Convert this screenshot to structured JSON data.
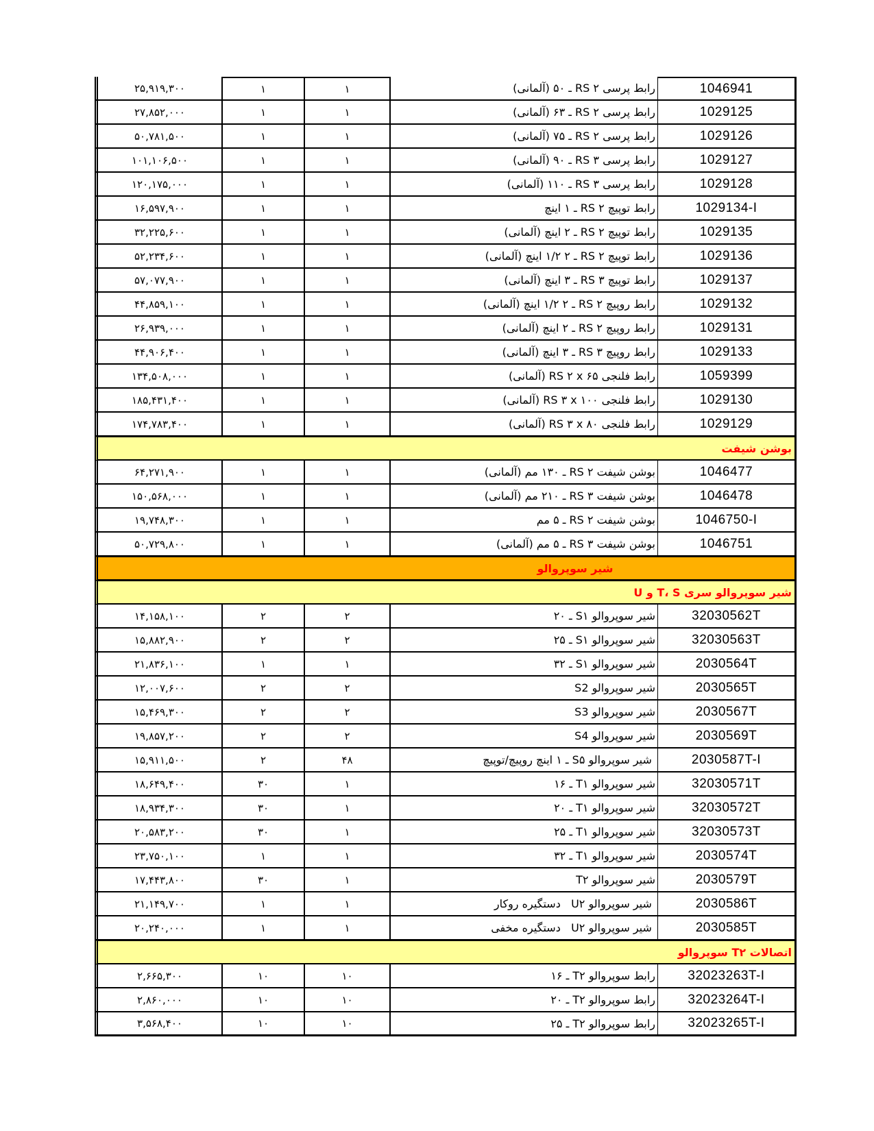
{
  "document": {
    "kind": "price-list-table",
    "language": "fa",
    "direction": "rtl"
  },
  "colors": {
    "section_band_yellow": "#FFFF99",
    "section_band_orange": "#FFB000",
    "section_band_text": "#FF0000",
    "grid_line": "#000000",
    "body_text": "#000000",
    "page_background": "#FFFFFF"
  },
  "table": {
    "columns_rtl": [
      "code",
      "description",
      "qty1",
      "qty2",
      "price"
    ],
    "sections": [
      {
        "type": "rows",
        "rows": [
          {
            "code": "1046941",
            "description": "رابط پرسی RS ۲ ـ ۵۰ (آلمانی)",
            "qty1": "۱",
            "qty2": "۱",
            "price": "۲۵,۹۱۹,۳۰۰"
          },
          {
            "code": "1029125",
            "description": "رابط پرسی RS ۲ ـ ۶۳ (آلمانی)",
            "qty1": "۱",
            "qty2": "۱",
            "price": "۲۷,۸۵۲,۰۰۰"
          },
          {
            "code": "1029126",
            "description": "رابط پرسی RS ۲ ـ ۷۵ (آلمانی)",
            "qty1": "۱",
            "qty2": "۱",
            "price": "۵۰,۷۸۱,۵۰۰"
          },
          {
            "code": "1029127",
            "description": "رابط پرسی RS ۳ ـ ۹۰ (آلمانی)",
            "qty1": "۱",
            "qty2": "۱",
            "price": "۱۰۱,۱۰۶,۵۰۰"
          },
          {
            "code": "1029128",
            "description": "رابط پرسی RS ۳ ـ ۱۱۰ (آلمانی)",
            "qty1": "۱",
            "qty2": "۱",
            "price": "۱۲۰,۱۷۵,۰۰۰"
          },
          {
            "code": "1029134-I",
            "description": "رابط توپیچ RS ۲ ـ ۱ اینچ",
            "qty1": "۱",
            "qty2": "۱",
            "price": "۱۶,۵۹۷,۹۰۰"
          },
          {
            "code": "1029135",
            "description": "رابط توپیچ RS ۲ ـ ۲ اینچ (آلمانی)",
            "qty1": "۱",
            "qty2": "۱",
            "price": "۳۲,۲۲۵,۶۰۰"
          },
          {
            "code": "1029136",
            "description": "رابط توپیچ RS ۲ ـ ۲ ۱/۲ اینچ (آلمانی)",
            "qty1": "۱",
            "qty2": "۱",
            "price": "۵۲,۲۳۴,۶۰۰"
          },
          {
            "code": "1029137",
            "description": "رابط توپیچ RS ۳ ـ ۳ اینچ (آلمانی)",
            "qty1": "۱",
            "qty2": "۱",
            "price": "۵۷,۰۷۷,۹۰۰"
          },
          {
            "code": "1029132",
            "description": "رابط روپیچ RS ۲ ـ ۲ ۱/۲ اینچ (آلمانی)",
            "qty1": "۱",
            "qty2": "۱",
            "price": "۴۴,۸۵۹,۱۰۰"
          },
          {
            "code": "1029131",
            "description": "رابط روپیچ RS ۲ ـ ۲ اینچ (آلمانی)",
            "qty1": "۱",
            "qty2": "۱",
            "price": "۲۶,۹۳۹,۰۰۰"
          },
          {
            "code": "1029133",
            "description": "رابط روپیچ RS ۳ ـ ۳ اینچ (آلمانی)",
            "qty1": "۱",
            "qty2": "۱",
            "price": "۴۴,۹۰۶,۴۰۰"
          },
          {
            "code": "1059399",
            "description": "رابط فلنجی RS ۲ x ۶۵ (آلمانی)",
            "qty1": "۱",
            "qty2": "۱",
            "price": "۱۳۴,۵۰۸,۰۰۰"
          },
          {
            "code": "1029130",
            "description": "رابط فلنجی RS ۳ x ۱۰۰ (آلمانی)",
            "qty1": "۱",
            "qty2": "۱",
            "price": "۱۸۵,۴۳۱,۴۰۰"
          },
          {
            "code": "1029129",
            "description": "رابط فلنجی RS ۳ x ۸۰ (آلمانی)",
            "qty1": "۱",
            "qty2": "۱",
            "price": "۱۷۴,۷۸۳,۴۰۰"
          }
        ]
      },
      {
        "type": "band",
        "style": "yellow",
        "align": "right",
        "label": "بوشن شیفت"
      },
      {
        "type": "rows",
        "rows": [
          {
            "code": "1046477",
            "description": "بوشن شیفت RS ۲ ـ ۱۳۰ مم (آلمانی)",
            "qty1": "۱",
            "qty2": "۱",
            "price": "۶۴,۲۷۱,۹۰۰"
          },
          {
            "code": "1046478",
            "description": "بوشن شیفت RS ۳ ـ ۲۱۰ مم (آلمانی)",
            "qty1": "۱",
            "qty2": "۱",
            "price": "۱۵۰,۵۶۸,۰۰۰"
          },
          {
            "code": "1046750-I",
            "description": "بوشن شیفت RS ۲ ـ ۵ مم",
            "qty1": "۱",
            "qty2": "۱",
            "price": "۱۹,۷۴۸,۳۰۰"
          },
          {
            "code": "1046751",
            "description": "بوشن شیفت RS ۳ ـ ۵ مم (آلمانی)",
            "qty1": "۱",
            "qty2": "۱",
            "price": "۵۰,۷۲۹,۸۰۰"
          }
        ]
      },
      {
        "type": "band",
        "style": "orange",
        "align": "center",
        "label": "شیر سوپروالو"
      },
      {
        "type": "band",
        "style": "yellow",
        "align": "right",
        "label": "شیر سوپروالو سری T، S و U"
      },
      {
        "type": "rows",
        "rows": [
          {
            "code": "32030562T",
            "description": "شیر سوپروالو S۱ ـ ۲۰",
            "qty1": "۲",
            "qty2": "۲",
            "price": "۱۴,۱۵۸,۱۰۰"
          },
          {
            "code": "32030563T",
            "description": "شیر سوپروالو S۱ ـ ۲۵",
            "qty1": "۲",
            "qty2": "۲",
            "price": "۱۵,۸۸۲,۹۰۰"
          },
          {
            "code": "2030564T",
            "description": "شیر سوپروالو S۱ ـ ۳۲",
            "qty1": "۱",
            "qty2": "۱",
            "price": "۲۱,۸۳۶,۱۰۰"
          },
          {
            "code": "2030565T",
            "description": "شیر سوپروالو S2",
            "qty1": "۲",
            "qty2": "۲",
            "price": "۱۲,۰۰۷,۶۰۰"
          },
          {
            "code": "2030567T",
            "description": "شیر سوپروالو S3",
            "qty1": "۲",
            "qty2": "۲",
            "price": "۱۵,۴۶۹,۳۰۰"
          },
          {
            "code": "2030569T",
            "description": "شیر سوپروالو S4",
            "qty1": "۲",
            "qty2": "۲",
            "price": "۱۹,۸۵۷,۲۰۰"
          },
          {
            "code": "2030587T-I",
            "description": " شیر سوپروالو S۵ ـ ۱ اینچ روپیچ/توپیچ",
            "qty1": "۴۸",
            "qty2": "۲",
            "price": "۱۵,۹۱۱,۵۰۰"
          },
          {
            "code": "32030571T",
            "description": "شیر سوپروالو T۱ ـ ۱۶",
            "qty1": "۱",
            "qty2": "۳۰",
            "price": "۱۸,۶۴۹,۴۰۰"
          },
          {
            "code": "32030572T",
            "description": "شیر سوپروالو T۱ ـ ۲۰",
            "qty1": "۱",
            "qty2": "۳۰",
            "price": "۱۸,۹۳۴,۳۰۰"
          },
          {
            "code": "32030573T",
            "description": "شیر سوپروالو T۱ ـ ۲۵",
            "qty1": "۱",
            "qty2": "۳۰",
            "price": "۲۰,۵۸۳,۲۰۰"
          },
          {
            "code": "2030574T",
            "description": "شیر سوپروالو T۱ ـ ۳۲",
            "qty1": "۱",
            "qty2": "۱",
            "price": "۲۳,۷۵۰,۱۰۰"
          },
          {
            "code": "2030579T",
            "description": "شیر سوپروالو T۲",
            "qty1": "۱",
            "qty2": "۳۰",
            "price": "۱۷,۴۴۳,۸۰۰"
          },
          {
            "code": "2030586T",
            "description": " شیر سوپروالو U۲   دستگیره روکار",
            "qty1": "۱",
            "qty2": "۱",
            "price": "۲۱,۱۴۹,۷۰۰"
          },
          {
            "code": "2030585T",
            "description": " شیر سوپروالو U۲   دستگیره مخفی",
            "qty1": "۱",
            "qty2": "۱",
            "price": "۲۰,۲۴۰,۰۰۰"
          }
        ]
      },
      {
        "type": "band",
        "style": "yellow",
        "align": "right",
        "label": "اتصالات T۲ سوپروالو"
      },
      {
        "type": "rows",
        "rows": [
          {
            "code": "32023263T-I",
            "description": "رابط سوپروالو T۲ ـ ۱۶",
            "qty1": "۱۰",
            "qty2": "۱۰",
            "price": "۲,۶۶۵,۳۰۰"
          },
          {
            "code": "32023264T-I",
            "description": "رابط سوپروالو T۲ ـ ۲۰",
            "qty1": "۱۰",
            "qty2": "۱۰",
            "price": "۲,۸۶۰,۰۰۰"
          },
          {
            "code": "32023265T-I",
            "description": "رابط سوپروالو T۲ ـ ۲۵",
            "qty1": "۱۰",
            "qty2": "۱۰",
            "price": "۳,۵۶۸,۴۰۰"
          }
        ]
      }
    ]
  }
}
